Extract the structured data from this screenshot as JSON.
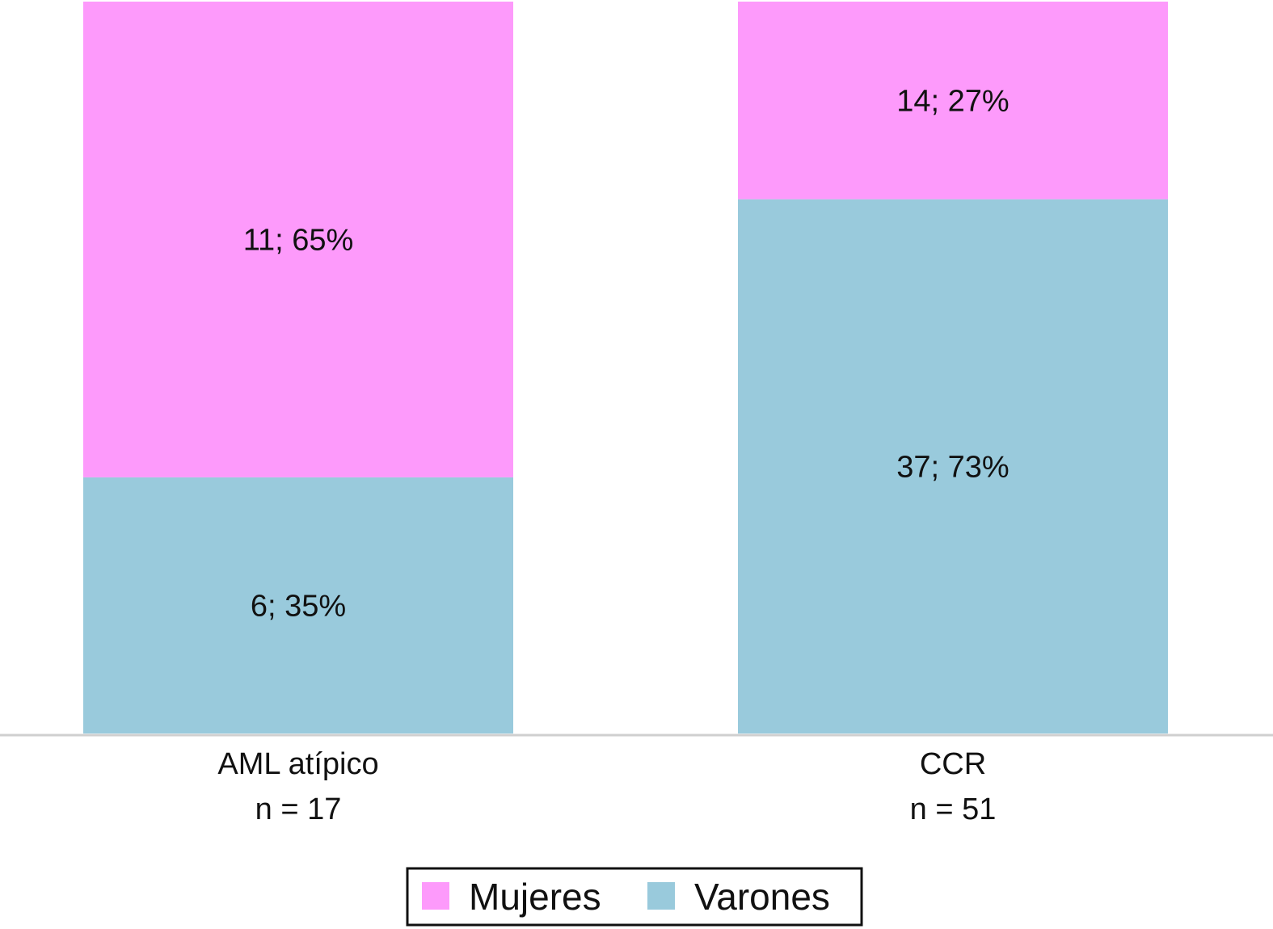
{
  "chart_data": {
    "type": "bar",
    "stacked": true,
    "normalized_percent": true,
    "categories": [
      "AML atípico",
      "CCR"
    ],
    "category_sublabels": [
      "n = 17",
      "n = 51"
    ],
    "series": [
      {
        "name": "Varones",
        "color": "#99cadc",
        "counts": [
          6,
          37
        ],
        "values": [
          35,
          73
        ],
        "labels": [
          "6; 35%",
          "37; 73%"
        ]
      },
      {
        "name": "Mujeres",
        "color": "#fd9afb",
        "counts": [
          11,
          14
        ],
        "values": [
          65,
          27
        ],
        "labels": [
          "11; 65%",
          "14; 27%"
        ]
      }
    ],
    "ylim": [
      0,
      100
    ],
    "grid": false,
    "legend": {
      "position": "bottom",
      "order": [
        "Mujeres",
        "Varones"
      ]
    }
  }
}
